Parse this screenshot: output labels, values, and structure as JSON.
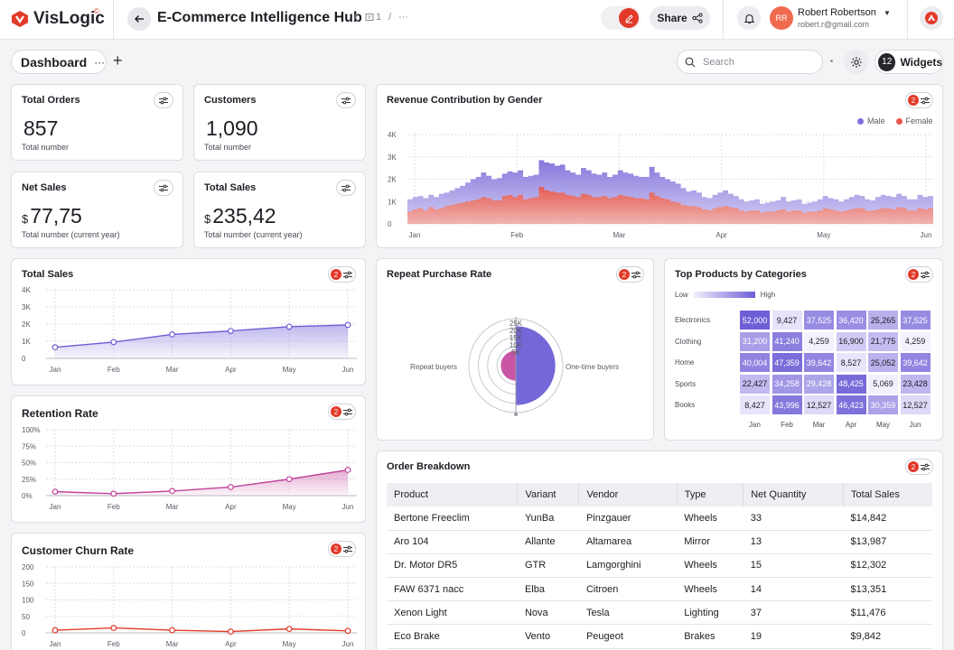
{
  "app": {
    "logo_text": "VisLogic",
    "logo_sup": "©"
  },
  "header": {
    "title": "E-Commerce Intelligence Hub",
    "crumb_sep1": "/",
    "crumb_count": "1",
    "crumb_sep2": "/",
    "crumb_more": "···",
    "share_label": "Share",
    "user_initials": "RR",
    "user_name": "Robert Robertson",
    "user_email": "robert.r@gmail.com"
  },
  "toolbar": {
    "tab_label": "Dashboard",
    "tab_more": "···",
    "add_tab": "+",
    "search_placeholder": "Search",
    "widgets_count": "12",
    "widgets_label": "Widgets"
  },
  "kpis": [
    {
      "title": "Total Orders",
      "currency": "",
      "value": "857",
      "sub": "Total number"
    },
    {
      "title": "Customers",
      "currency": "",
      "value": "1,090",
      "sub": "Total number"
    },
    {
      "title": "Net Sales",
      "currency": "$",
      "value": "77,75",
      "sub": "Total number (current year)"
    },
    {
      "title": "Total Sales",
      "currency": "$",
      "value": "235,42",
      "sub": "Total number (current year)"
    }
  ],
  "filter_badge": "2",
  "colors": {
    "accent": "#e23a2a",
    "male": "#7d6fd9",
    "female": "#e8584a",
    "purple": "#6e5fd6",
    "magenta": "#c2449b"
  },
  "revenue": {
    "title": "Revenue Contribution by Gender",
    "legend": [
      "Male",
      "Female"
    ],
    "chart_data": {
      "type": "area",
      "title": "Revenue Contribution by Gender",
      "y_ticks": [
        "4K",
        "3K",
        "2K",
        "1K",
        "0"
      ],
      "x_ticks": [
        "Jan",
        "Feb",
        "Mar",
        "Apr",
        "May",
        "Jun"
      ],
      "ylim": [
        0,
        4000
      ],
      "grid": true,
      "legend_position": "top-right",
      "series": [
        {
          "name": "Male",
          "values": [
            1100,
            1200,
            1250,
            1150,
            1300,
            1200,
            1350,
            1400,
            1500,
            1600,
            1700,
            1850,
            2000,
            2100,
            2300,
            2150,
            2000,
            2050,
            2250,
            2350,
            2300,
            2400,
            2100,
            2150,
            2200,
            2850,
            2750,
            2700,
            2600,
            2650,
            2400,
            2300,
            2200,
            2500,
            2400,
            2250,
            2200,
            2300,
            2100,
            2200,
            2400,
            2300,
            2250,
            2150,
            2100,
            2100,
            2550,
            2300,
            2100,
            2000,
            1900,
            1800,
            1600,
            1450,
            1500,
            1400,
            1200,
            1150,
            1300,
            1400,
            1500,
            1350,
            1250,
            1100,
            1000,
            1050,
            1100,
            900,
            950,
            1000,
            1050,
            1200,
            1000,
            1050,
            1100,
            900,
            950,
            1000,
            1100,
            1250,
            1150,
            1100,
            1000,
            1100,
            1200,
            1300,
            1250,
            1100,
            1050,
            1200,
            1300,
            1250,
            1200,
            1350,
            1250,
            1100,
            1100,
            1300,
            1200,
            1250
          ]
        },
        {
          "name": "Female",
          "values": [
            550,
            650,
            700,
            600,
            750,
            650,
            700,
            800,
            850,
            900,
            950,
            1000,
            1050,
            1100,
            1200,
            1150,
            1050,
            1050,
            1250,
            1300,
            1200,
            1300,
            1100,
            1150,
            1200,
            1650,
            1500,
            1450,
            1400,
            1400,
            1300,
            1250,
            1200,
            1350,
            1300,
            1200,
            1200,
            1250,
            1150,
            1200,
            1300,
            1250,
            1200,
            1150,
            1150,
            1100,
            1400,
            1250,
            1150,
            1100,
            1000,
            950,
            850,
            800,
            800,
            750,
            650,
            600,
            700,
            750,
            800,
            750,
            700,
            600,
            550,
            600,
            600,
            500,
            550,
            550,
            600,
            650,
            550,
            600,
            600,
            500,
            550,
            550,
            600,
            700,
            650,
            600,
            550,
            600,
            650,
            700,
            700,
            600,
            600,
            650,
            700,
            700,
            650,
            750,
            700,
            600,
            600,
            700,
            650,
            700
          ]
        }
      ]
    }
  },
  "total_sales": {
    "title": "Total Sales",
    "chart_data": {
      "type": "area",
      "title": "Total Sales",
      "y_ticks": [
        "4K",
        "3K",
        "2K",
        "1K",
        "0"
      ],
      "x": [
        "Jan",
        "Feb",
        "Mar",
        "Apr",
        "May",
        "Jun"
      ],
      "ylim": [
        0,
        4000
      ],
      "series": [
        {
          "name": "",
          "values": [
            650,
            950,
            1400,
            1600,
            1850,
            1950
          ]
        }
      ]
    }
  },
  "retention": {
    "title": "Retention Rate",
    "chart_data": {
      "type": "area",
      "title": "Retention Rate",
      "y_ticks": [
        "100%",
        "75%",
        "50%",
        "25%",
        "0%"
      ],
      "x": [
        "Jan",
        "Feb",
        "Mar",
        "Apr",
        "May",
        "Jun"
      ],
      "ylim": [
        0,
        100
      ],
      "series": [
        {
          "name": "",
          "values": [
            6,
            3,
            7,
            13,
            25,
            39
          ]
        }
      ]
    }
  },
  "churn": {
    "title": "Customer Churn Rate",
    "chart_data": {
      "type": "line",
      "title": "Customer Churn Rate",
      "y_ticks": [
        "200",
        "150",
        "100",
        "50",
        "0"
      ],
      "x": [
        "Jan",
        "Feb",
        "Mar",
        "Apr",
        "May",
        "Jun"
      ],
      "ylim": [
        0,
        200
      ],
      "series": [
        {
          "name": "",
          "values": [
            8,
            15,
            8,
            4,
            12,
            6
          ]
        }
      ]
    }
  },
  "repeat": {
    "title": "Repeat Purchase Rate",
    "chart_data": {
      "type": "pie",
      "title": "Repeat Purchase Rate",
      "rings": [
        "25K",
        "20K",
        "15K",
        "10K",
        "5K"
      ],
      "rmax": 25000,
      "categories": [
        "Repeat buyers",
        "One-time buyers"
      ],
      "values": [
        8000,
        21000
      ]
    }
  },
  "top_products": {
    "title": "Top Products by Categories",
    "legend_low": "Low",
    "legend_high": "High",
    "chart_data": {
      "type": "heatmap",
      "title": "Top Products by Categories",
      "rows": [
        "Electronics",
        "Clothing",
        "Home",
        "Sports",
        "Books"
      ],
      "columns": [
        "Jan",
        "Feb",
        "Mar",
        "Apr",
        "May",
        "Jun"
      ],
      "values": [
        [
          52000,
          9427,
          37525,
          36420,
          25265,
          37525
        ],
        [
          31200,
          41240,
          4259,
          16900,
          21775,
          4259
        ],
        [
          40004,
          47359,
          39642,
          8527,
          25052,
          39642
        ],
        [
          22427,
          34258,
          29428,
          48425,
          5069,
          23428
        ],
        [
          8427,
          43996,
          12527,
          46423,
          30359,
          12527
        ]
      ],
      "labels": [
        [
          "52,000",
          "9,427",
          "37,525",
          "36,420",
          "25,265",
          "37,525"
        ],
        [
          "31,200",
          "41,240",
          "4,259",
          "16,900",
          "21,775",
          "4,259"
        ],
        [
          "40,004",
          "47,359",
          "39,642",
          "8,527",
          "25,052",
          "39,642"
        ],
        [
          "22,427",
          "34,258",
          "29,428",
          "48,425",
          "5,069",
          "23,428"
        ],
        [
          "8,427",
          "43,996",
          "12,527",
          "46,423",
          "30,359",
          "12,527"
        ]
      ]
    }
  },
  "orders": {
    "title": "Order Breakdown",
    "columns": [
      "Product",
      "Variant",
      "Vendor",
      "Type",
      "Net Quantity",
      "Total Sales"
    ],
    "rows": [
      [
        "Bertone Freeclim",
        "YunBa",
        "Pinzgauer",
        "Wheels",
        "33",
        "$14,842"
      ],
      [
        "Aro 104",
        "Allante",
        "Altamarea",
        "Mirror",
        "13",
        "$13,987"
      ],
      [
        "Dr. Motor DR5",
        "GTR",
        "Lamgorghini",
        "Wheels",
        "15",
        "$12,302"
      ],
      [
        "FAW 6371 nacc",
        "Elba",
        "Citroen",
        "Wheels",
        "14",
        "$13,351"
      ],
      [
        "Xenon Light",
        "Nova",
        "Tesla",
        "Lighting",
        "37",
        "$11,476"
      ],
      [
        "Eco Brake",
        "Vento",
        "Peugeot",
        "Brakes",
        "19",
        "$9,842"
      ]
    ]
  }
}
